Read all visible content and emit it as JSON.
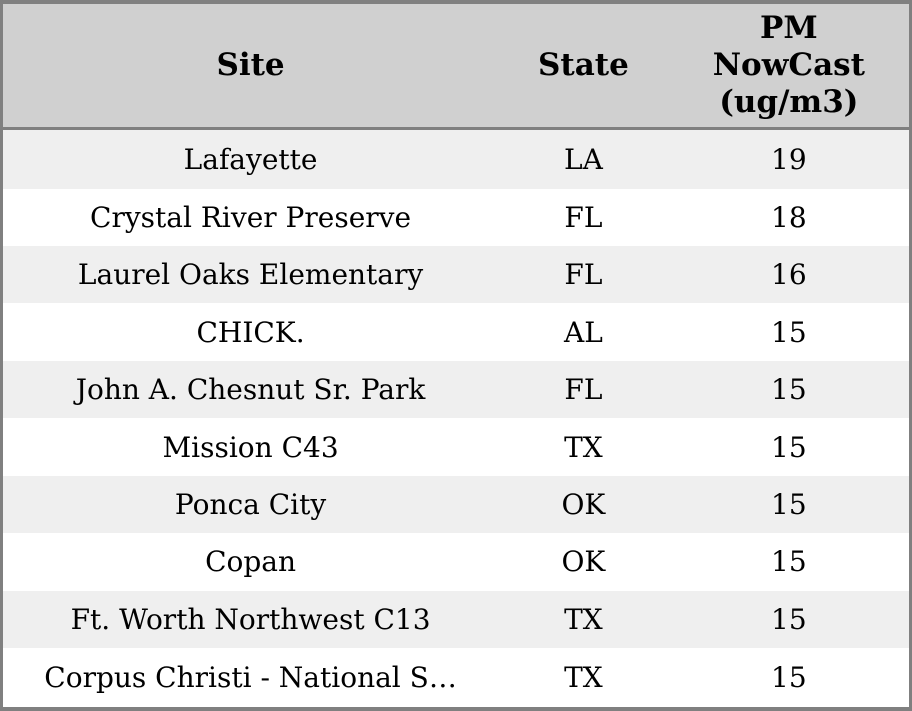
{
  "colors": {
    "border": "#808080",
    "header_bg": "#d0d0d0",
    "row_alt_bg": "#efefef",
    "row_bg": "#ffffff",
    "text": "#000000"
  },
  "chart_data": {
    "type": "table",
    "columns": [
      "Site",
      "State",
      "PM\nNowCast\n(ug/m3)"
    ],
    "rows": [
      [
        "Lafayette",
        "LA",
        19
      ],
      [
        "Crystal River Preserve",
        "FL",
        18
      ],
      [
        "Laurel Oaks Elementary",
        "FL",
        16
      ],
      [
        "CHICK.",
        "AL",
        15
      ],
      [
        "John A. Chesnut Sr. Park",
        "FL",
        15
      ],
      [
        "Mission C43",
        "TX",
        15
      ],
      [
        "Ponca City",
        "OK",
        15
      ],
      [
        "Copan",
        "OK",
        15
      ],
      [
        "Ft. Worth Northwest C13",
        "TX",
        15
      ],
      [
        "Corpus Christi - National S…",
        "TX",
        15
      ]
    ]
  }
}
